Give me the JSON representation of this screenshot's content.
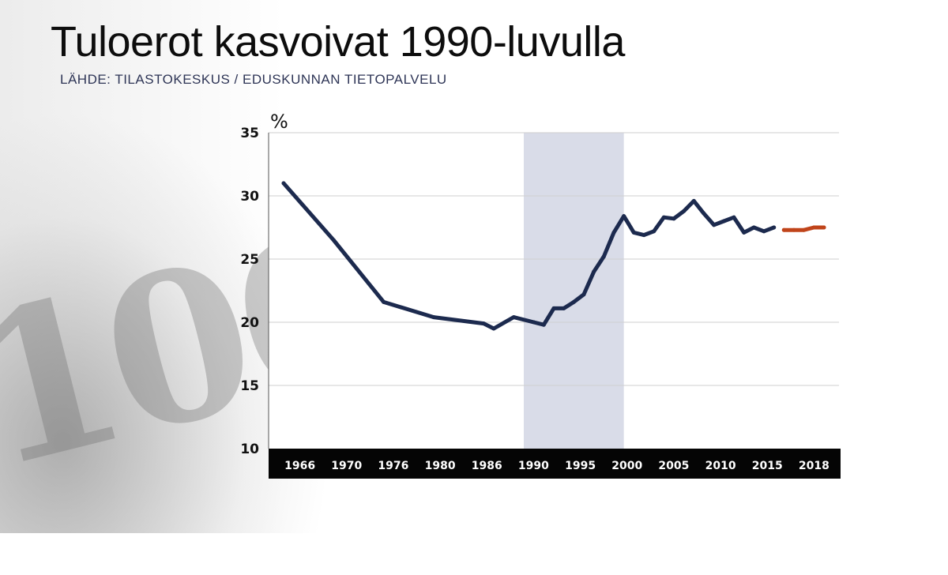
{
  "header": {
    "title": "Tuloerot kasvoivat 1990-luvulla",
    "subtitle": "LÄHDE: TILASTOKESKUS / EDUSKUNNAN TIETOPALVELU"
  },
  "chart_data": {
    "type": "line",
    "title": "Tuloerot kasvoivat 1990-luvulla",
    "subtitle": "LÄHDE: TILASTOKESKUS / EDUSKUNNAN TIETOPALVELU",
    "xlabel": "",
    "ylabel": "%",
    "ylim": [
      10,
      35
    ],
    "y_ticks": [
      10,
      15,
      20,
      25,
      30,
      35
    ],
    "x_tick_labels": [
      "1966",
      "1970",
      "1976",
      "1980",
      "1986",
      "1990",
      "1995",
      "2000",
      "2005",
      "2010",
      "2015",
      "2018"
    ],
    "grid": true,
    "highlight_band": {
      "from": 1990,
      "to": 2000,
      "color": "#d9dce8"
    },
    "series": [
      {
        "color": "#1c2a4e",
        "x": [
          1966,
          1971,
          1976,
          1981,
          1986,
          1987,
          1989,
          1991,
          1992,
          1993,
          1994,
          1995,
          1996,
          1997,
          1998,
          1999,
          2000,
          2001,
          2002,
          2003,
          2004,
          2005,
          2006,
          2007,
          2008,
          2009,
          2010,
          2011,
          2012,
          2013,
          2014,
          2015
        ],
        "values": [
          31.0,
          26.5,
          21.6,
          20.4,
          19.9,
          19.5,
          20.4,
          20.0,
          19.8,
          21.1,
          21.1,
          21.6,
          22.2,
          24.0,
          25.2,
          27.1,
          28.4,
          27.1,
          26.9,
          27.2,
          28.3,
          28.2,
          28.8,
          29.6,
          28.6,
          27.7,
          28.0,
          28.3,
          27.1,
          27.5,
          27.2,
          27.5
        ]
      },
      {
        "color": "#c0441a",
        "x": [
          2016,
          2017,
          2018,
          2019,
          2020
        ],
        "values": [
          27.3,
          27.3,
          27.3,
          27.5,
          27.5
        ]
      }
    ]
  }
}
